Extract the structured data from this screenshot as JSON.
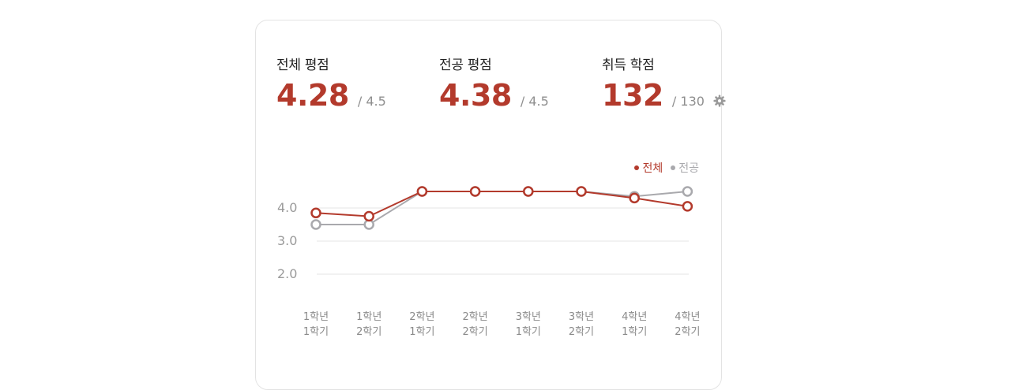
{
  "stats": [
    {
      "label": "전체 평점",
      "value": "4.28",
      "max": "/ 4.5"
    },
    {
      "label": "전공 평점",
      "value": "4.38",
      "max": "/ 4.5"
    },
    {
      "label": "취득 학점",
      "value": "132",
      "max": "/ 130"
    }
  ],
  "icons": {
    "settings": "gear-icon"
  },
  "colors": {
    "overall": "#b33a2c",
    "major": "#a9a9ad",
    "grid": "#e6e6e6"
  },
  "legend": [
    {
      "name": "전체",
      "color": "#b33a2c"
    },
    {
      "name": "전공",
      "color": "#a9a9ad"
    }
  ],
  "chart_data": {
    "type": "line",
    "x": [
      [
        "1학년",
        "1학기"
      ],
      [
        "1학년",
        "2학기"
      ],
      [
        "2학년",
        "1학기"
      ],
      [
        "2학년",
        "2학기"
      ],
      [
        "3학년",
        "1학기"
      ],
      [
        "3학년",
        "2학기"
      ],
      [
        "4학년",
        "1학기"
      ],
      [
        "4학년",
        "2학기"
      ]
    ],
    "series": [
      {
        "name": "전체",
        "values": [
          3.85,
          3.75,
          4.5,
          4.5,
          4.5,
          4.5,
          4.3,
          4.05
        ]
      },
      {
        "name": "전공",
        "values": [
          3.5,
          3.5,
          4.5,
          4.5,
          4.5,
          4.5,
          4.35,
          4.5
        ]
      }
    ],
    "yticks": [
      "4.0",
      "3.0",
      "2.0"
    ],
    "ylim": [
      2.0,
      4.5
    ],
    "grid": true,
    "legend_position": "top-right"
  }
}
